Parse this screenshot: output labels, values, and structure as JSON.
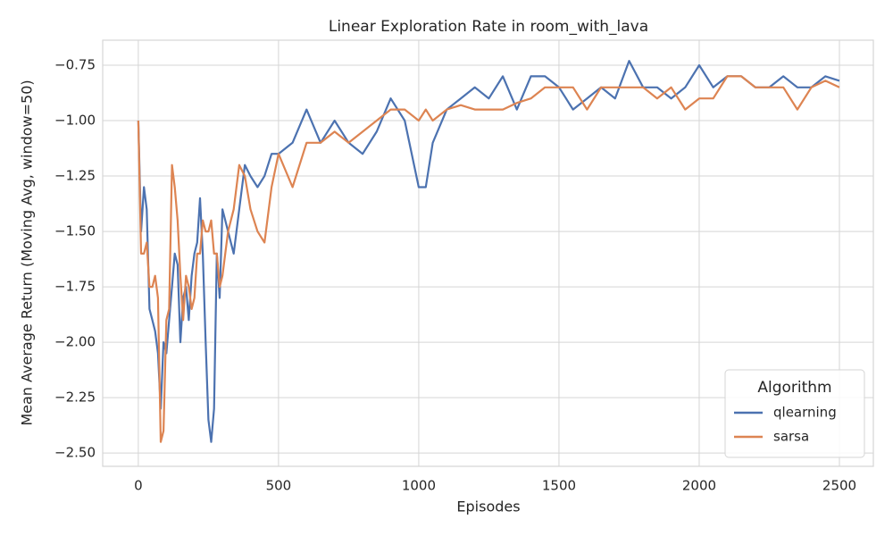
{
  "chart_data": {
    "type": "line",
    "title": "Linear Exploration Rate in room_with_lava",
    "x_label": "Episodes",
    "y_label": "Mean Average Return (Moving Avg, window=50)",
    "x": [
      0,
      10,
      20,
      30,
      40,
      50,
      60,
      70,
      80,
      90,
      100,
      110,
      120,
      130,
      140,
      150,
      160,
      170,
      180,
      190,
      200,
      210,
      220,
      230,
      240,
      250,
      260,
      270,
      280,
      290,
      300,
      320,
      340,
      360,
      380,
      400,
      425,
      450,
      475,
      500,
      550,
      600,
      650,
      700,
      750,
      800,
      850,
      900,
      950,
      1000,
      1025,
      1050,
      1100,
      1150,
      1200,
      1250,
      1300,
      1350,
      1400,
      1450,
      1500,
      1550,
      1600,
      1650,
      1700,
      1750,
      1800,
      1850,
      1900,
      1950,
      2000,
      2050,
      2100,
      2150,
      2200,
      2250,
      2300,
      2350,
      2400,
      2450,
      2500
    ],
    "series": [
      {
        "name": "qlearning",
        "color": "#4c72b0",
        "values": [
          -1.0,
          -1.5,
          -1.3,
          -1.4,
          -1.85,
          -1.9,
          -1.95,
          -2.05,
          -2.3,
          -2.0,
          -2.05,
          -1.9,
          -1.75,
          -1.6,
          -1.65,
          -2.0,
          -1.8,
          -1.75,
          -1.9,
          -1.7,
          -1.6,
          -1.55,
          -1.35,
          -1.6,
          -2.0,
          -2.35,
          -2.45,
          -2.3,
          -1.6,
          -1.8,
          -1.4,
          -1.5,
          -1.6,
          -1.4,
          -1.2,
          -1.25,
          -1.3,
          -1.25,
          -1.15,
          -1.15,
          -1.1,
          -0.95,
          -1.1,
          -1.0,
          -1.1,
          -1.15,
          -1.05,
          -0.9,
          -1.0,
          -1.3,
          -1.3,
          -1.1,
          -0.95,
          -0.9,
          -0.85,
          -0.9,
          -0.8,
          -0.95,
          -0.8,
          -0.8,
          -0.85,
          -0.95,
          -0.9,
          -0.85,
          -0.9,
          -0.73,
          -0.85,
          -0.85,
          -0.9,
          -0.85,
          -0.75,
          -0.85,
          -0.8,
          -0.8,
          -0.85,
          -0.85,
          -0.8,
          -0.85,
          -0.85,
          -0.8,
          -0.82
        ]
      },
      {
        "name": "sarsa",
        "color": "#dd8452",
        "values": [
          -1.0,
          -1.6,
          -1.6,
          -1.55,
          -1.75,
          -1.75,
          -1.7,
          -1.8,
          -2.45,
          -2.4,
          -1.9,
          -1.85,
          -1.2,
          -1.3,
          -1.45,
          -1.7,
          -1.9,
          -1.7,
          -1.75,
          -1.85,
          -1.8,
          -1.6,
          -1.6,
          -1.45,
          -1.5,
          -1.5,
          -1.45,
          -1.6,
          -1.6,
          -1.75,
          -1.7,
          -1.5,
          -1.4,
          -1.2,
          -1.25,
          -1.4,
          -1.5,
          -1.55,
          -1.3,
          -1.15,
          -1.3,
          -1.1,
          -1.1,
          -1.05,
          -1.1,
          -1.05,
          -1.0,
          -0.95,
          -0.95,
          -1.0,
          -0.95,
          -1.0,
          -0.95,
          -0.93,
          -0.95,
          -0.95,
          -0.95,
          -0.92,
          -0.9,
          -0.85,
          -0.85,
          -0.85,
          -0.95,
          -0.85,
          -0.85,
          -0.85,
          -0.85,
          -0.9,
          -0.85,
          -0.95,
          -0.9,
          -0.9,
          -0.8,
          -0.8,
          -0.85,
          -0.85,
          -0.85,
          -0.95,
          -0.85,
          -0.82,
          -0.85
        ]
      }
    ],
    "xlim": [
      -127,
      2621
    ],
    "ylim": [
      -2.56,
      -0.637
    ],
    "xticks": [
      0,
      500,
      1000,
      1500,
      2000,
      2500
    ],
    "yticks": [
      {
        "value": -2.5,
        "label": "−2.50"
      },
      {
        "value": -2.25,
        "label": "−2.25"
      },
      {
        "value": -2.0,
        "label": "−2.00"
      },
      {
        "value": -1.75,
        "label": "−1.75"
      },
      {
        "value": -1.5,
        "label": "−1.50"
      },
      {
        "value": -1.25,
        "label": "−1.25"
      },
      {
        "value": -1.0,
        "label": "−1.00"
      },
      {
        "value": -0.75,
        "label": "−0.75"
      }
    ],
    "grid": true,
    "legend": {
      "title": "Algorithm",
      "position": "lower right"
    }
  }
}
